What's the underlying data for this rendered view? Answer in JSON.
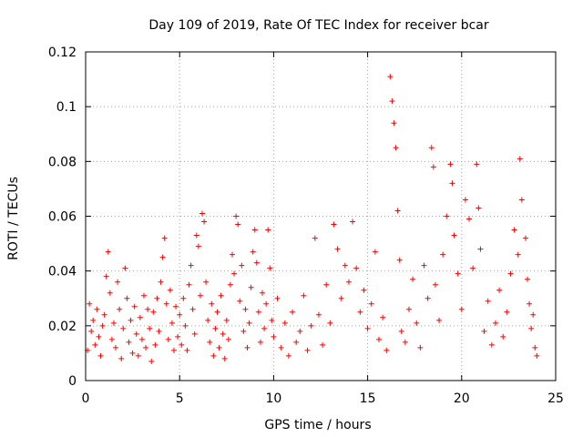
{
  "chart_data": {
    "type": "scatter",
    "title": "Day 109 of 2019, Rate Of TEC Index for receiver bcar",
    "xlabel": "GPS time / hours",
    "ylabel": "ROTI / TECUs",
    "xlim": [
      0,
      25
    ],
    "ylim": [
      0,
      0.12
    ],
    "xticks": [
      0,
      5,
      10,
      15,
      20,
      25
    ],
    "yticks": [
      0,
      0.02,
      0.04,
      0.06,
      0.08,
      0.1,
      0.12
    ],
    "xtick_labels": [
      "0",
      "5",
      "10",
      "15",
      "20",
      "25"
    ],
    "ytick_labels": [
      "0",
      "0.02",
      "0.04",
      "0.06",
      "0.08",
      "0.1",
      "0.12"
    ],
    "grid": true,
    "marker": "+",
    "color": "#ff0000",
    "series": [
      {
        "name": "ROTI",
        "points": [
          [
            0.1,
            0.011
          ],
          [
            0.2,
            0.028
          ],
          [
            0.3,
            0.018
          ],
          [
            0.4,
            0.022
          ],
          [
            0.5,
            0.013
          ],
          [
            0.6,
            0.026
          ],
          [
            0.7,
            0.016
          ],
          [
            0.8,
            0.009
          ],
          [
            0.9,
            0.02
          ],
          [
            1.0,
            0.024
          ],
          [
            1.1,
            0.038
          ],
          [
            1.2,
            0.047
          ],
          [
            1.3,
            0.032
          ],
          [
            1.4,
            0.015
          ],
          [
            1.5,
            0.021
          ],
          [
            1.6,
            0.012
          ],
          [
            1.7,
            0.036
          ],
          [
            1.8,
            0.026
          ],
          [
            1.9,
            0.008
          ],
          [
            2.0,
            0.019
          ],
          [
            2.1,
            0.041
          ],
          [
            2.2,
            0.03
          ],
          [
            2.3,
            0.014
          ],
          [
            2.4,
            0.022
          ],
          [
            2.5,
            0.01
          ],
          [
            2.6,
            0.027
          ],
          [
            2.7,
            0.017
          ],
          [
            2.8,
            0.009
          ],
          [
            2.9,
            0.023
          ],
          [
            3.0,
            0.015
          ],
          [
            3.1,
            0.031
          ],
          [
            3.2,
            0.012
          ],
          [
            3.3,
            0.026
          ],
          [
            3.4,
            0.019
          ],
          [
            3.5,
            0.007
          ],
          [
            3.6,
            0.025
          ],
          [
            3.7,
            0.013
          ],
          [
            3.8,
            0.03
          ],
          [
            3.9,
            0.018
          ],
          [
            4.0,
            0.036
          ],
          [
            4.1,
            0.045
          ],
          [
            4.2,
            0.052
          ],
          [
            4.3,
            0.028
          ],
          [
            4.4,
            0.015
          ],
          [
            4.5,
            0.033
          ],
          [
            4.6,
            0.021
          ],
          [
            4.7,
            0.011
          ],
          [
            4.8,
            0.027
          ],
          [
            4.9,
            0.016
          ],
          [
            5.0,
            0.024
          ],
          [
            5.1,
            0.013
          ],
          [
            5.2,
            0.03
          ],
          [
            5.3,
            0.02
          ],
          [
            5.4,
            0.011
          ],
          [
            5.5,
            0.035
          ],
          [
            5.6,
            0.042
          ],
          [
            5.7,
            0.026
          ],
          [
            5.8,
            0.017
          ],
          [
            5.9,
            0.053
          ],
          [
            6.0,
            0.049
          ],
          [
            6.1,
            0.031
          ],
          [
            6.2,
            0.061
          ],
          [
            6.3,
            0.058
          ],
          [
            6.4,
            0.036
          ],
          [
            6.5,
            0.022
          ],
          [
            6.6,
            0.014
          ],
          [
            6.7,
            0.028
          ],
          [
            6.8,
            0.009
          ],
          [
            6.9,
            0.019
          ],
          [
            7.0,
            0.025
          ],
          [
            7.1,
            0.012
          ],
          [
            7.2,
            0.031
          ],
          [
            7.3,
            0.017
          ],
          [
            7.4,
            0.008
          ],
          [
            7.5,
            0.022
          ],
          [
            7.6,
            0.015
          ],
          [
            7.7,
            0.035
          ],
          [
            7.8,
            0.046
          ],
          [
            7.9,
            0.039
          ],
          [
            8.0,
            0.06
          ],
          [
            8.1,
            0.057
          ],
          [
            8.2,
            0.029
          ],
          [
            8.3,
            0.042
          ],
          [
            8.4,
            0.018
          ],
          [
            8.5,
            0.026
          ],
          [
            8.6,
            0.012
          ],
          [
            8.7,
            0.021
          ],
          [
            8.8,
            0.034
          ],
          [
            8.9,
            0.047
          ],
          [
            9.0,
            0.055
          ],
          [
            9.1,
            0.043
          ],
          [
            9.2,
            0.025
          ],
          [
            9.3,
            0.014
          ],
          [
            9.4,
            0.032
          ],
          [
            9.5,
            0.019
          ],
          [
            9.6,
            0.028
          ],
          [
            9.7,
            0.055
          ],
          [
            9.8,
            0.041
          ],
          [
            9.9,
            0.022
          ],
          [
            10.0,
            0.016
          ],
          [
            10.2,
            0.03
          ],
          [
            10.4,
            0.012
          ],
          [
            10.6,
            0.021
          ],
          [
            10.8,
            0.009
          ],
          [
            11.0,
            0.025
          ],
          [
            11.2,
            0.014
          ],
          [
            11.4,
            0.018
          ],
          [
            11.6,
            0.031
          ],
          [
            11.8,
            0.011
          ],
          [
            12.0,
            0.02
          ],
          [
            12.2,
            0.052
          ],
          [
            12.4,
            0.024
          ],
          [
            12.6,
            0.013
          ],
          [
            12.8,
            0.035
          ],
          [
            13.0,
            0.021
          ],
          [
            13.2,
            0.057
          ],
          [
            13.4,
            0.048
          ],
          [
            13.6,
            0.03
          ],
          [
            13.8,
            0.042
          ],
          [
            14.0,
            0.036
          ],
          [
            14.2,
            0.058
          ],
          [
            14.4,
            0.041
          ],
          [
            14.6,
            0.025
          ],
          [
            14.8,
            0.033
          ],
          [
            15.0,
            0.019
          ],
          [
            15.2,
            0.028
          ],
          [
            15.4,
            0.047
          ],
          [
            15.6,
            0.015
          ],
          [
            15.8,
            0.023
          ],
          [
            16.0,
            0.011
          ],
          [
            16.2,
            0.111
          ],
          [
            16.3,
            0.102
          ],
          [
            16.4,
            0.094
          ],
          [
            16.5,
            0.085
          ],
          [
            16.6,
            0.062
          ],
          [
            16.7,
            0.044
          ],
          [
            16.8,
            0.018
          ],
          [
            17.0,
            0.014
          ],
          [
            17.2,
            0.026
          ],
          [
            17.4,
            0.037
          ],
          [
            17.6,
            0.021
          ],
          [
            17.8,
            0.012
          ],
          [
            18.0,
            0.042
          ],
          [
            18.2,
            0.03
          ],
          [
            18.4,
            0.085
          ],
          [
            18.5,
            0.078
          ],
          [
            18.6,
            0.035
          ],
          [
            18.8,
            0.022
          ],
          [
            19.0,
            0.046
          ],
          [
            19.2,
            0.06
          ],
          [
            19.4,
            0.079
          ],
          [
            19.5,
            0.072
          ],
          [
            19.6,
            0.053
          ],
          [
            19.8,
            0.039
          ],
          [
            20.0,
            0.026
          ],
          [
            20.2,
            0.066
          ],
          [
            20.4,
            0.059
          ],
          [
            20.6,
            0.041
          ],
          [
            20.8,
            0.079
          ],
          [
            20.9,
            0.063
          ],
          [
            21.0,
            0.048
          ],
          [
            21.2,
            0.018
          ],
          [
            21.4,
            0.029
          ],
          [
            21.6,
            0.013
          ],
          [
            21.8,
            0.021
          ],
          [
            22.0,
            0.033
          ],
          [
            22.2,
            0.016
          ],
          [
            22.4,
            0.025
          ],
          [
            22.6,
            0.039
          ],
          [
            22.8,
            0.055
          ],
          [
            23.0,
            0.046
          ],
          [
            23.1,
            0.081
          ],
          [
            23.2,
            0.066
          ],
          [
            23.4,
            0.052
          ],
          [
            23.5,
            0.037
          ],
          [
            23.6,
            0.028
          ],
          [
            23.7,
            0.019
          ],
          [
            23.8,
            0.024
          ],
          [
            23.9,
            0.012
          ],
          [
            24.0,
            0.009
          ]
        ]
      }
    ]
  }
}
